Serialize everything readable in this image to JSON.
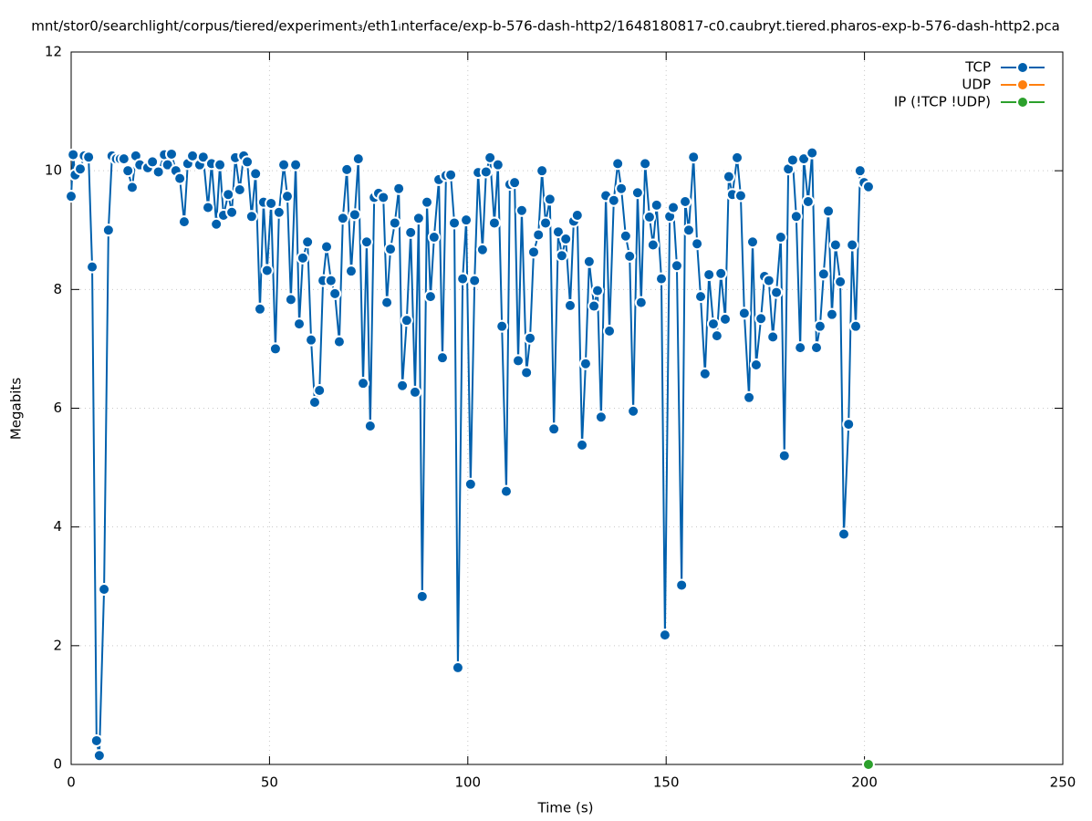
{
  "chart_data": {
    "type": "line",
    "title": "mnt/stor0/searchlight/corpus/tiered/experiment₃/eth1ᵢnterface/exp-b-576-dash-http2/1648180817-c0.caubryt.tiered.pharos-exp-b-576-dash-http2.pca",
    "x_label": "Time (s)",
    "y_label": "Megabits",
    "xlim": [
      0,
      250
    ],
    "xticks": [
      0,
      50,
      100,
      150,
      200,
      250
    ],
    "ylim": [
      0,
      12
    ],
    "yticks": [
      0,
      2,
      4,
      6,
      8,
      10,
      12
    ],
    "grid": true,
    "legend": "top-right",
    "series": [
      {
        "name": "TCP",
        "color": "#0060ad",
        "x": [
          0,
          0.5,
          1,
          2.3,
          3.3,
          4.4,
          5.3,
          6.4,
          7.1,
          8.3,
          9.4,
          10.3,
          11.4,
          12.4,
          13.3,
          14.3,
          15.4,
          16.3,
          17.3,
          19.3,
          20.5,
          22,
          23.5,
          24.3,
          25.3,
          26.4,
          27.4,
          28.5,
          29.4,
          30.6,
          32.4,
          33.3,
          34.5,
          35.4,
          36.6,
          37.5,
          38.4,
          39.6,
          40.5,
          41.4,
          42.5,
          43.5,
          44.4,
          45.5,
          46.5,
          47.6,
          48.5,
          49.4,
          50.4,
          51.5,
          52.4,
          53.6,
          54.5,
          55.4,
          56.6,
          57.5,
          58.4,
          59.6,
          60.5,
          61.4,
          62.6,
          63.5,
          64.4,
          65.5,
          66.5,
          67.6,
          68.5,
          69.5,
          70.6,
          71.5,
          72.4,
          73.6,
          74.5,
          75.4,
          76.4,
          77.5,
          78.7,
          79.6,
          80.5,
          81.6,
          82.6,
          83.5,
          84.6,
          85.6,
          86.7,
          87.6,
          88.5,
          89.7,
          90.6,
          91.5,
          92.7,
          93.6,
          94.5,
          95.7,
          96.6,
          97.5,
          98.7,
          99.6,
          100.7,
          101.7,
          102.6,
          103.7,
          104.6,
          105.6,
          106.7,
          107.6,
          108.6,
          109.7,
          110.6,
          111.8,
          112.7,
          113.6,
          114.8,
          115.7,
          116.6,
          117.8,
          118.7,
          119.6,
          120.7,
          121.7,
          122.8,
          123.7,
          124.7,
          125.8,
          126.7,
          127.6,
          128.8,
          129.7,
          130.6,
          131.8,
          132.7,
          133.6,
          134.8,
          135.7,
          136.8,
          137.8,
          138.7,
          139.8,
          140.8,
          141.7,
          142.8,
          143.7,
          144.7,
          145.8,
          146.7,
          147.6,
          148.8,
          149.7,
          150.9,
          151.8,
          152.7,
          153.9,
          154.8,
          155.7,
          156.9,
          157.8,
          158.7,
          159.8,
          160.8,
          161.9,
          162.8,
          163.8,
          164.9,
          165.8,
          166.7,
          167.9,
          168.8,
          169.7,
          170.9,
          171.8,
          172.7,
          173.9,
          174.8,
          175.9,
          176.9,
          177.8,
          178.9,
          179.8,
          180.8,
          181.9,
          182.8,
          183.8,
          184.7,
          185.8,
          186.8,
          187.9,
          188.8,
          189.7,
          190.9,
          191.8,
          192.7,
          193.9,
          194.8,
          196,
          196.9,
          197.8,
          198.9,
          199.9,
          201
        ],
        "values": [
          9.57,
          10.27,
          9.93,
          10.03,
          10.25,
          10.23,
          8.38,
          0.4,
          0.15,
          2.95,
          9.0,
          10.25,
          10.2,
          10.2,
          10.2,
          10.0,
          9.72,
          10.25,
          10.1,
          10.05,
          10.15,
          9.98,
          10.27,
          10.1,
          10.28,
          10.0,
          9.87,
          9.14,
          10.12,
          10.25,
          10.1,
          10.23,
          9.38,
          10.12,
          9.1,
          10.1,
          9.25,
          9.6,
          9.3,
          10.22,
          9.68,
          10.25,
          10.15,
          9.23,
          9.95,
          7.67,
          9.47,
          8.32,
          9.45,
          7.0,
          9.3,
          10.1,
          9.57,
          7.83,
          10.1,
          7.42,
          8.53,
          8.8,
          7.15,
          6.1,
          6.3,
          8.15,
          8.72,
          8.15,
          7.93,
          7.12,
          9.2,
          10.02,
          8.31,
          9.26,
          10.2,
          6.42,
          8.8,
          5.7,
          9.55,
          9.62,
          9.55,
          7.78,
          8.68,
          9.12,
          9.7,
          6.38,
          7.48,
          8.96,
          6.27,
          9.2,
          2.83,
          9.47,
          7.88,
          8.88,
          9.85,
          6.85,
          9.92,
          9.93,
          9.12,
          1.63,
          8.18,
          9.17,
          4.72,
          8.15,
          9.97,
          8.67,
          9.98,
          10.22,
          9.12,
          10.1,
          7.38,
          4.6,
          9.77,
          9.8,
          6.8,
          9.33,
          6.6,
          7.18,
          8.63,
          8.92,
          10.0,
          9.12,
          9.52,
          5.65,
          8.97,
          8.57,
          8.85,
          7.73,
          9.15,
          9.25,
          5.38,
          6.75,
          8.47,
          7.72,
          7.98,
          5.85,
          9.58,
          7.3,
          9.5,
          10.12,
          9.7,
          8.9,
          8.56,
          5.95,
          9.63,
          7.78,
          10.12,
          9.22,
          8.75,
          9.42,
          8.18,
          2.18,
          9.23,
          9.38,
          8.4,
          3.02,
          9.48,
          9.0,
          10.23,
          8.77,
          7.88,
          6.58,
          8.25,
          7.42,
          7.22,
          8.27,
          7.5,
          9.9,
          9.6,
          10.22,
          9.58,
          7.6,
          6.18,
          8.8,
          6.73,
          7.51,
          8.22,
          8.15,
          7.2,
          7.95,
          8.88,
          5.2,
          10.03,
          10.18,
          9.23,
          7.02,
          10.2,
          9.48,
          10.3,
          7.02,
          7.38,
          8.26,
          9.32,
          7.58,
          8.75,
          8.13,
          3.88,
          5.73,
          8.75,
          7.38,
          10.0,
          9.8,
          9.73
        ]
      },
      {
        "name": "UDP",
        "color": "#ff7f0e",
        "x": [],
        "values": []
      },
      {
        "name": "IP (!TCP  !UDP)",
        "color": "#2ca02c",
        "x": [
          201
        ],
        "values": [
          0
        ]
      }
    ]
  }
}
